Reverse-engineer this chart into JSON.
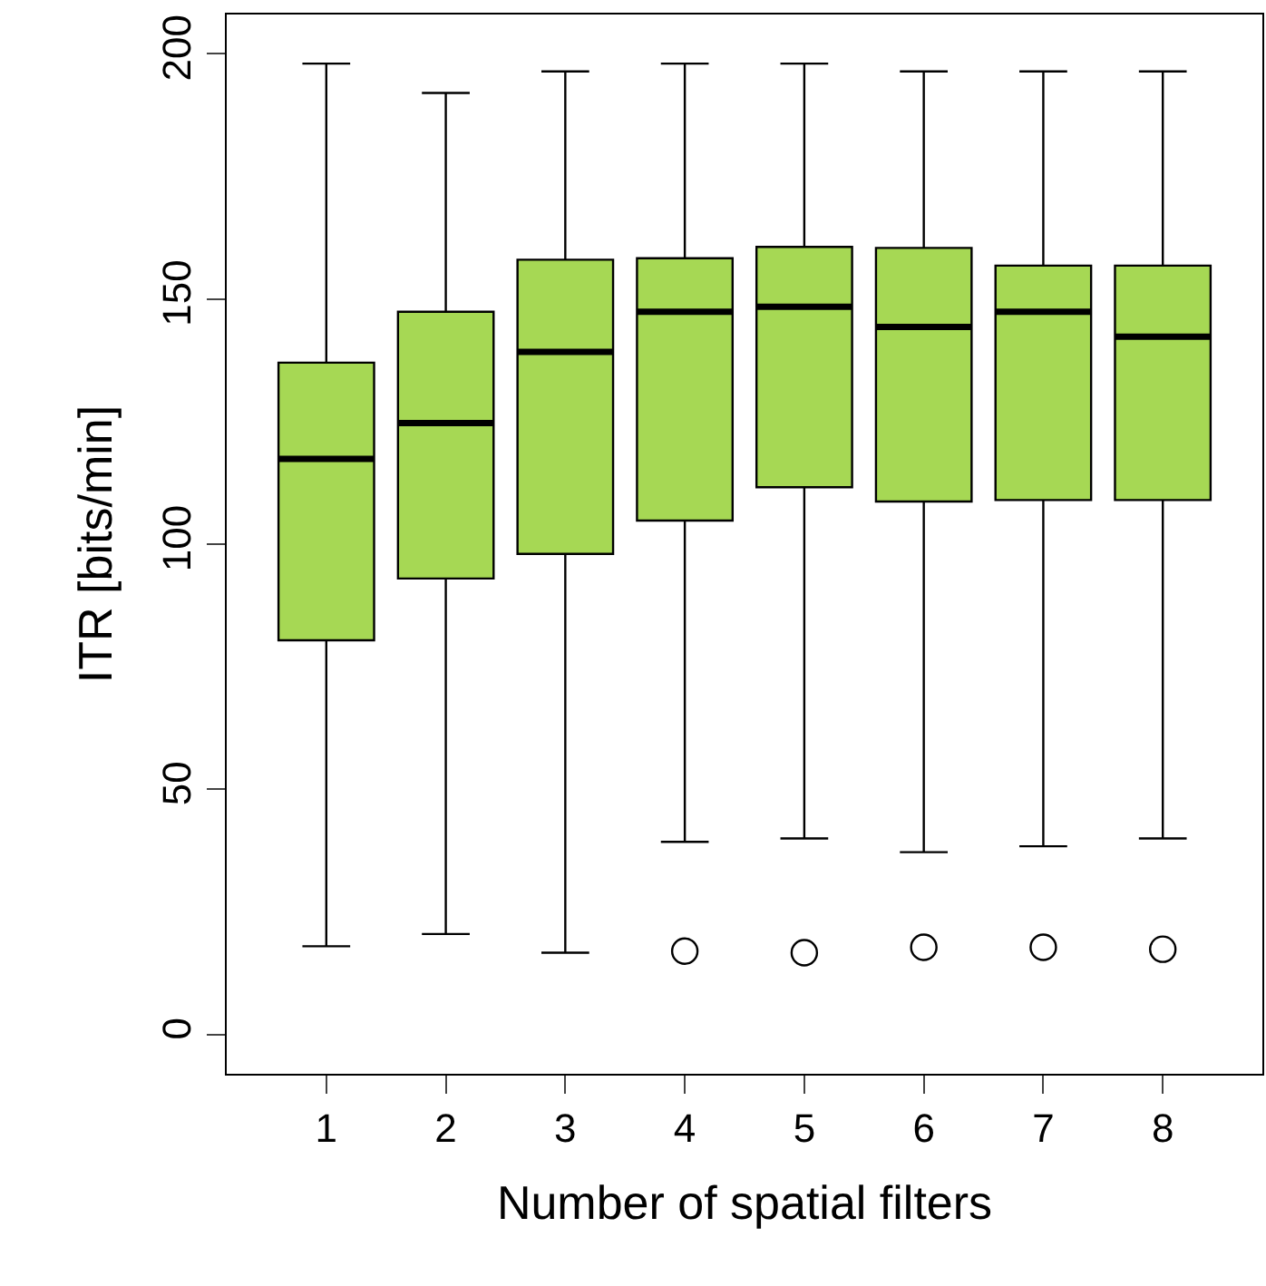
{
  "chart_data": {
    "type": "box",
    "xlabel": "Number of spatial filters",
    "ylabel": "ITR [bits/min]",
    "categories": [
      "1",
      "2",
      "3",
      "4",
      "5",
      "6",
      "7",
      "8"
    ],
    "color": "#a6d854",
    "ylim": [
      -8,
      208
    ],
    "yticks": [
      0,
      50,
      100,
      150,
      200
    ],
    "boxes": [
      {
        "low": 18,
        "q1": 80.4,
        "median": 117.4,
        "q3": 137,
        "high": 198
      },
      {
        "low": 20.5,
        "q1": 93,
        "median": 124.7,
        "q3": 147.4,
        "high": 192
      },
      {
        "low": 16.7,
        "q1": 98,
        "median": 139.2,
        "q3": 158,
        "high": 196.4
      },
      {
        "low": 39.3,
        "q1": 104.8,
        "median": 147.4,
        "q3": 158.3,
        "high": 198,
        "outliers": [
          17
        ]
      },
      {
        "low": 40,
        "q1": 111.6,
        "median": 148.4,
        "q3": 160.6,
        "high": 198,
        "outliers": [
          16.7
        ]
      },
      {
        "low": 37.2,
        "q1": 108.7,
        "median": 144.3,
        "q3": 160.4,
        "high": 196.4,
        "outliers": [
          17.8
        ]
      },
      {
        "low": 38.4,
        "q1": 109,
        "median": 147.4,
        "q3": 156.8,
        "high": 196.4,
        "outliers": [
          17.8
        ]
      },
      {
        "low": 40,
        "q1": 109,
        "median": 142.3,
        "q3": 156.8,
        "high": 196.4,
        "outliers": [
          17.4
        ]
      }
    ]
  }
}
